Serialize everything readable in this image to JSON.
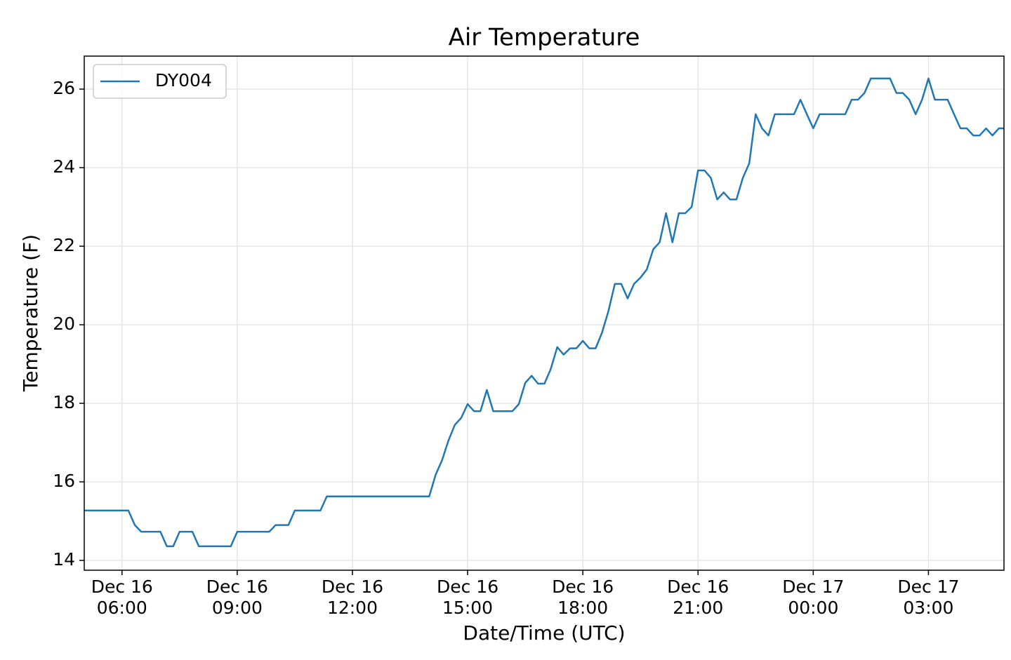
{
  "chart_data": {
    "type": "line",
    "title": "Air Temperature",
    "x_label": "Date/Time (UTC)",
    "y_label": "Temperature (F)",
    "x": [
      "Dec 16 05:00",
      "Dec 16 05:10",
      "Dec 16 05:20",
      "Dec 16 05:30",
      "Dec 16 05:40",
      "Dec 16 05:50",
      "Dec 16 06:00",
      "Dec 16 06:10",
      "Dec 16 06:20",
      "Dec 16 06:30",
      "Dec 16 06:40",
      "Dec 16 06:50",
      "Dec 16 07:00",
      "Dec 16 07:10",
      "Dec 16 07:20",
      "Dec 16 07:30",
      "Dec 16 07:40",
      "Dec 16 07:50",
      "Dec 16 08:00",
      "Dec 16 08:10",
      "Dec 16 08:20",
      "Dec 16 08:30",
      "Dec 16 08:40",
      "Dec 16 08:50",
      "Dec 16 09:00",
      "Dec 16 09:10",
      "Dec 16 09:20",
      "Dec 16 09:30",
      "Dec 16 09:40",
      "Dec 16 09:50",
      "Dec 16 10:00",
      "Dec 16 10:10",
      "Dec 16 10:20",
      "Dec 16 10:30",
      "Dec 16 10:40",
      "Dec 16 10:50",
      "Dec 16 11:00",
      "Dec 16 11:10",
      "Dec 16 11:20",
      "Dec 16 11:30",
      "Dec 16 11:40",
      "Dec 16 11:50",
      "Dec 16 12:00",
      "Dec 16 12:10",
      "Dec 16 12:20",
      "Dec 16 12:30",
      "Dec 16 12:40",
      "Dec 16 12:50",
      "Dec 16 13:00",
      "Dec 16 13:10",
      "Dec 16 13:20",
      "Dec 16 13:30",
      "Dec 16 13:40",
      "Dec 16 13:50",
      "Dec 16 14:00",
      "Dec 16 14:10",
      "Dec 16 14:20",
      "Dec 16 14:30",
      "Dec 16 14:40",
      "Dec 16 14:50",
      "Dec 16 15:00",
      "Dec 16 15:10",
      "Dec 16 15:20",
      "Dec 16 15:30",
      "Dec 16 15:40",
      "Dec 16 15:50",
      "Dec 16 16:00",
      "Dec 16 16:10",
      "Dec 16 16:20",
      "Dec 16 16:30",
      "Dec 16 16:40",
      "Dec 16 16:50",
      "Dec 16 17:00",
      "Dec 16 17:10",
      "Dec 16 17:20",
      "Dec 16 17:30",
      "Dec 16 17:40",
      "Dec 16 17:50",
      "Dec 16 18:00",
      "Dec 16 18:10",
      "Dec 16 18:20",
      "Dec 16 18:30",
      "Dec 16 18:40",
      "Dec 16 18:50",
      "Dec 16 19:00",
      "Dec 16 19:10",
      "Dec 16 19:20",
      "Dec 16 19:30",
      "Dec 16 19:40",
      "Dec 16 19:50",
      "Dec 16 20:00",
      "Dec 16 20:10",
      "Dec 16 20:20",
      "Dec 16 20:30",
      "Dec 16 20:40",
      "Dec 16 20:50",
      "Dec 16 21:00",
      "Dec 16 21:10",
      "Dec 16 21:20",
      "Dec 16 21:30",
      "Dec 16 21:40",
      "Dec 16 21:50",
      "Dec 16 22:00",
      "Dec 16 22:10",
      "Dec 16 22:20",
      "Dec 16 22:30",
      "Dec 16 22:40",
      "Dec 16 22:50",
      "Dec 16 23:00",
      "Dec 16 23:10",
      "Dec 16 23:20",
      "Dec 16 23:30",
      "Dec 16 23:40",
      "Dec 16 23:50",
      "Dec 17 00:00",
      "Dec 17 00:10",
      "Dec 17 00:20",
      "Dec 17 00:30",
      "Dec 17 00:40",
      "Dec 17 00:50",
      "Dec 17 01:00",
      "Dec 17 01:10",
      "Dec 17 01:20",
      "Dec 17 01:30",
      "Dec 17 01:40",
      "Dec 17 01:50",
      "Dec 17 02:00",
      "Dec 17 02:10",
      "Dec 17 02:20",
      "Dec 17 02:30",
      "Dec 17 02:40",
      "Dec 17 02:50",
      "Dec 17 03:00",
      "Dec 17 03:10",
      "Dec 17 03:20",
      "Dec 17 03:30",
      "Dec 17 03:40",
      "Dec 17 03:50",
      "Dec 17 04:00",
      "Dec 17 04:10",
      "Dec 17 04:20",
      "Dec 17 04:30",
      "Dec 17 04:40",
      "Dec 17 04:50",
      "Dec 17 05:00"
    ],
    "series": [
      {
        "name": "DY004",
        "color": "#1f77b4",
        "values": [
          15.27,
          15.27,
          15.27,
          15.27,
          15.27,
          15.27,
          15.27,
          15.27,
          14.9,
          14.73,
          14.73,
          14.73,
          14.73,
          14.36,
          14.36,
          14.73,
          14.73,
          14.73,
          14.36,
          14.36,
          14.36,
          14.36,
          14.36,
          14.36,
          14.73,
          14.73,
          14.73,
          14.73,
          14.73,
          14.73,
          14.9,
          14.9,
          14.9,
          15.27,
          15.27,
          15.27,
          15.27,
          15.27,
          15.63,
          15.63,
          15.63,
          15.63,
          15.63,
          15.63,
          15.63,
          15.63,
          15.63,
          15.63,
          15.63,
          15.63,
          15.63,
          15.63,
          15.63,
          15.63,
          15.63,
          16.18,
          16.55,
          17.05,
          17.45,
          17.63,
          17.98,
          17.8,
          17.8,
          18.34,
          17.8,
          17.8,
          17.8,
          17.8,
          17.98,
          18.52,
          18.7,
          18.5,
          18.5,
          18.88,
          19.43,
          19.24,
          19.4,
          19.4,
          19.59,
          19.4,
          19.4,
          19.8,
          20.35,
          21.04,
          21.04,
          20.67,
          21.04,
          21.2,
          21.41,
          21.92,
          22.1,
          22.84,
          22.1,
          22.84,
          22.84,
          23.0,
          23.93,
          23.93,
          23.74,
          23.19,
          23.37,
          23.19,
          23.19,
          23.74,
          24.11,
          25.36,
          25.0,
          24.82,
          25.36,
          25.36,
          25.36,
          25.36,
          25.73,
          25.36,
          25.0,
          25.36,
          25.36,
          25.36,
          25.36,
          25.36,
          25.73,
          25.73,
          25.9,
          26.27,
          26.27,
          26.27,
          26.27,
          25.9,
          25.9,
          25.73,
          25.36,
          25.73,
          26.27,
          25.73,
          25.73,
          25.73,
          25.36,
          25.0,
          25.0,
          24.82,
          24.82,
          25.0,
          24.82,
          25.0,
          25.0
        ]
      }
    ],
    "xlim": [
      "Dec 16 05:01",
      "Dec 17 04:58"
    ],
    "xticks": [
      {
        "value": "Dec 16 06:00",
        "label": "Dec 16\n06:00"
      },
      {
        "value": "Dec 16 09:00",
        "label": "Dec 16\n09:00"
      },
      {
        "value": "Dec 16 12:00",
        "label": "Dec 16\n12:00"
      },
      {
        "value": "Dec 16 15:00",
        "label": "Dec 16\n15:00"
      },
      {
        "value": "Dec 16 18:00",
        "label": "Dec 16\n18:00"
      },
      {
        "value": "Dec 16 21:00",
        "label": "Dec 16\n21:00"
      },
      {
        "value": "Dec 17 00:00",
        "label": "Dec 17\n00:00"
      },
      {
        "value": "Dec 17 03:00",
        "label": "Dec 17\n03:00"
      }
    ],
    "ylim": [
      13.75,
      26.84
    ],
    "yticks": [
      14,
      16,
      18,
      20,
      22,
      24,
      26
    ],
    "grid": true,
    "legend": "upper left"
  }
}
